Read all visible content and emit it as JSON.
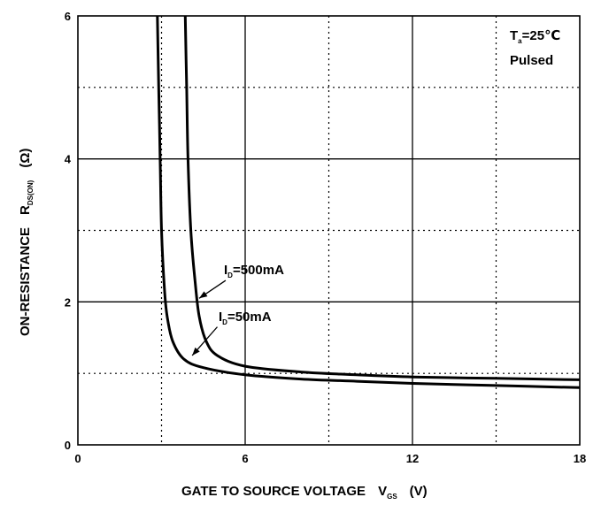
{
  "chart_data": {
    "type": "line",
    "xlabel": "GATE TO SOURCE VOLTAGE",
    "xlabel_symbol": "V",
    "xlabel_subscript": "GS",
    "xlabel_unit": "(V)",
    "ylabel": "ON-RESISTANCE",
    "ylabel_symbol": "R",
    "ylabel_subscript": "DS(ON)",
    "ylabel_unit": "(Ω)",
    "xlim": [
      0,
      18
    ],
    "ylim": [
      0,
      6
    ],
    "x_ticks": [
      0,
      6,
      12,
      18
    ],
    "y_ticks": [
      0,
      2,
      4,
      6
    ],
    "x_minor_gridlines": [
      3,
      9,
      15
    ],
    "y_minor_gridlines": [
      1,
      3,
      5
    ],
    "grid": true,
    "conditions": {
      "temperature_symbol": "T",
      "temperature_subscript": "a",
      "temperature_value": "=25℃",
      "mode": "Pulsed"
    },
    "series": [
      {
        "name": "I_D=500mA",
        "label_symbol": "I",
        "label_subscript": "D",
        "label_value": "=500mA",
        "points": [
          [
            3.85,
            6.0
          ],
          [
            3.9,
            5.0
          ],
          [
            3.95,
            4.0
          ],
          [
            4.05,
            3.0
          ],
          [
            4.2,
            2.3
          ],
          [
            4.35,
            1.8
          ],
          [
            4.6,
            1.45
          ],
          [
            5.0,
            1.25
          ],
          [
            6.0,
            1.1
          ],
          [
            8.0,
            1.02
          ],
          [
            10.0,
            0.98
          ],
          [
            12.0,
            0.95
          ],
          [
            15.0,
            0.93
          ],
          [
            18.0,
            0.91
          ]
        ]
      },
      {
        "name": "I_D=50mA",
        "label_symbol": "I",
        "label_subscript": "D",
        "label_value": "=50mA",
        "points": [
          [
            2.85,
            6.0
          ],
          [
            2.9,
            5.0
          ],
          [
            2.95,
            4.0
          ],
          [
            3.0,
            3.0
          ],
          [
            3.1,
            2.2
          ],
          [
            3.2,
            1.8
          ],
          [
            3.4,
            1.45
          ],
          [
            3.8,
            1.2
          ],
          [
            4.5,
            1.08
          ],
          [
            6.0,
            0.98
          ],
          [
            8.0,
            0.92
          ],
          [
            10.0,
            0.89
          ],
          [
            12.0,
            0.86
          ],
          [
            15.0,
            0.83
          ],
          [
            18.0,
            0.8
          ]
        ]
      }
    ],
    "annotations": [
      {
        "series": "I_D=500mA",
        "text_anchor": [
          5.3,
          2.3
        ],
        "arrow_to": [
          4.35,
          2.05
        ]
      },
      {
        "series": "I_D=50mA",
        "text_anchor": [
          5.0,
          1.65
        ],
        "arrow_to": [
          4.1,
          1.25
        ]
      }
    ]
  }
}
